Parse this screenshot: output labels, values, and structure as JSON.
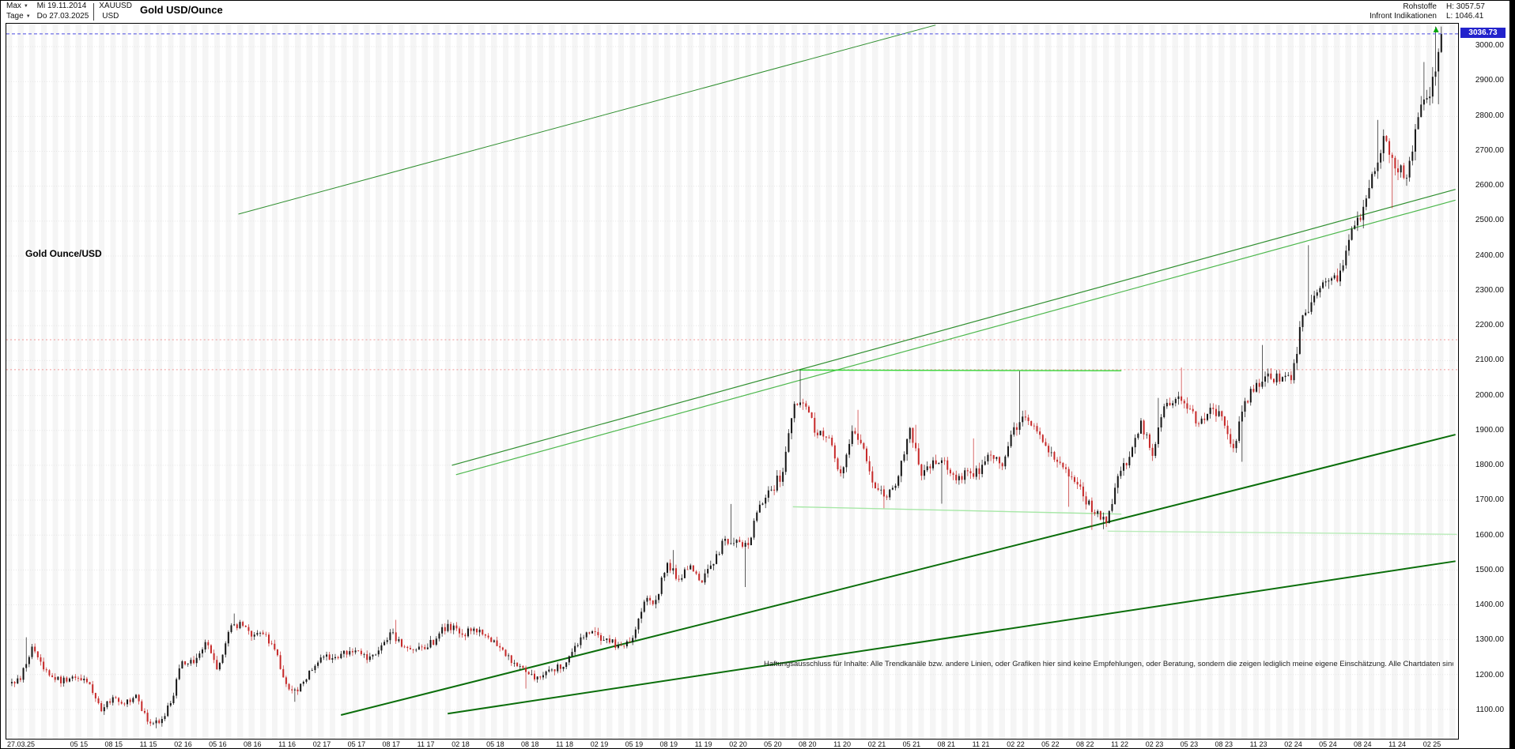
{
  "header": {
    "range_label": "Max",
    "period_label": "Tage",
    "start_date": "Mi 19.11.2014",
    "end_date": "Do 27.03.2025",
    "symbol": "XAUUSD",
    "currency": "USD",
    "title": "Gold USD/Ounce",
    "category": "Rohstoffe",
    "source": "Infront Indikationen",
    "high_label": "H: 3057.57",
    "low_label": "L: 1046.41"
  },
  "price_badge": "3036.73",
  "annotations": {
    "series_label": "Gold Ounce/USD",
    "disclaimer": "Haftungsausschluss für Inhalte: Alle Trendkanäle bzw. andere Linien, oder Grafiken hier sind keine Empfehlungen, oder Beratung, sondern die zeigen lediglich meine eigene Einschätzung. Alle Chartdaten sind ohne"
  },
  "chart_data": {
    "type": "candlestick",
    "title": "Gold USD/Ounce",
    "last_price": 3036.73,
    "period_high": 3057.57,
    "period_low": 1046.41,
    "ylim": [
      1046,
      3058
    ],
    "x_range_years": [
      2014.88,
      2025.32
    ],
    "grid": true,
    "legend": false,
    "y_ticks": [
      3000,
      2900,
      2800,
      2700,
      2600,
      2500,
      2400,
      2300,
      2200,
      2100,
      2000,
      1900,
      1800,
      1700,
      1600,
      1500,
      1400,
      1300,
      1200,
      1100
    ],
    "x_first_label": "27.03.25",
    "x_ticks": [
      "05 15",
      "08 15",
      "11 15",
      "02 16",
      "05 16",
      "08 16",
      "11 16",
      "02 17",
      "05 17",
      "08 17",
      "11 17",
      "02 18",
      "05 18",
      "08 18",
      "11 18",
      "02 19",
      "05 19",
      "08 19",
      "11 19",
      "02 20",
      "05 20",
      "08 20",
      "11 20",
      "02 21",
      "05 21",
      "08 21",
      "11 21",
      "02 22",
      "05 22",
      "08 22",
      "11 22",
      "02 23",
      "05 23",
      "08 23",
      "11 23",
      "02 24",
      "05 24",
      "08 24",
      "11 24",
      "02 25"
    ],
    "colors": {
      "candle_up": "#141414",
      "candle_down": "#c62828",
      "grid": "#e5e5e5",
      "badge_bg": "#2323cc",
      "price_line": "#4a4ae0",
      "level_line": "#f09898",
      "marker": "#00a50a"
    },
    "points": [
      [
        "2014-11",
        1175
      ],
      [
        "2014-12",
        1185
      ],
      [
        "2015-01",
        1280,
        1307
      ],
      [
        "2015-02",
        1215
      ],
      [
        "2015-03",
        1185
      ],
      [
        "2015-04",
        1180
      ],
      [
        "2015-05",
        1190
      ],
      [
        "2015-06",
        1172
      ],
      [
        "2015-07",
        1095
      ],
      [
        "2015-08",
        1135
      ],
      [
        "2015-09",
        1115
      ],
      [
        "2015-10",
        1142
      ],
      [
        "2015-11",
        1065
      ],
      [
        "2015-12",
        1061,
        null,
        1046
      ],
      [
        "2016-01",
        1118
      ],
      [
        "2016-02",
        1238
      ],
      [
        "2016-03",
        1233
      ],
      [
        "2016-04",
        1293
      ],
      [
        "2016-05",
        1215
      ],
      [
        "2016-06",
        1322
      ],
      [
        "2016-07",
        1351,
        1375
      ],
      [
        "2016-08",
        1309
      ],
      [
        "2016-09",
        1316
      ],
      [
        "2016-10",
        1272
      ],
      [
        "2016-11",
        1173
      ],
      [
        "2016-12",
        1152,
        null,
        1122
      ],
      [
        "2017-01",
        1211
      ],
      [
        "2017-02",
        1249
      ],
      [
        "2017-03",
        1247
      ],
      [
        "2017-04",
        1268
      ],
      [
        "2017-05",
        1269
      ],
      [
        "2017-06",
        1242
      ],
      [
        "2017-07",
        1269
      ],
      [
        "2017-08",
        1321
      ],
      [
        "2017-09",
        1280,
        1357
      ],
      [
        "2017-10",
        1271
      ],
      [
        "2017-11",
        1273
      ],
      [
        "2017-12",
        1303
      ],
      [
        "2018-01",
        1345
      ],
      [
        "2018-02",
        1318
      ],
      [
        "2018-03",
        1325
      ],
      [
        "2018-04",
        1315
      ],
      [
        "2018-05",
        1298
      ],
      [
        "2018-06",
        1253
      ],
      [
        "2018-07",
        1224
      ],
      [
        "2018-08",
        1201,
        null,
        1160
      ],
      [
        "2018-09",
        1192
      ],
      [
        "2018-10",
        1215
      ],
      [
        "2018-11",
        1222
      ],
      [
        "2018-12",
        1282
      ],
      [
        "2019-01",
        1321
      ],
      [
        "2019-02",
        1313
      ],
      [
        "2019-03",
        1292
      ],
      [
        "2019-04",
        1283
      ],
      [
        "2019-05",
        1305
      ],
      [
        "2019-06",
        1409
      ],
      [
        "2019-07",
        1414
      ],
      [
        "2019-08",
        1520
      ],
      [
        "2019-09",
        1472,
        1557
      ],
      [
        "2019-10",
        1513
      ],
      [
        "2019-11",
        1464
      ],
      [
        "2019-12",
        1517
      ],
      [
        "2020-01",
        1589
      ],
      [
        "2020-02",
        1586,
        1689
      ],
      [
        "2020-03",
        1571,
        null,
        1451
      ],
      [
        "2020-04",
        1687
      ],
      [
        "2020-05",
        1730
      ],
      [
        "2020-06",
        1781
      ],
      [
        "2020-07",
        1976
      ],
      [
        "2020-08",
        1968,
        2075
      ],
      [
        "2020-09",
        1886
      ],
      [
        "2020-10",
        1879
      ],
      [
        "2020-11",
        1777
      ],
      [
        "2020-12",
        1898
      ],
      [
        "2021-01",
        1848,
        1959
      ],
      [
        "2021-02",
        1734
      ],
      [
        "2021-03",
        1708,
        null,
        1677
      ],
      [
        "2021-04",
        1769
      ],
      [
        "2021-05",
        1907
      ],
      [
        "2021-06",
        1770,
        1916
      ],
      [
        "2021-07",
        1814
      ],
      [
        "2021-08",
        1814,
        null,
        1690
      ],
      [
        "2021-09",
        1757
      ],
      [
        "2021-10",
        1783
      ],
      [
        "2021-11",
        1775,
        1877
      ],
      [
        "2021-12",
        1829
      ],
      [
        "2022-01",
        1797
      ],
      [
        "2022-02",
        1909
      ],
      [
        "2022-03",
        1937,
        2070
      ],
      [
        "2022-04",
        1897
      ],
      [
        "2022-05",
        1837
      ],
      [
        "2022-06",
        1807
      ],
      [
        "2022-07",
        1766,
        null,
        1681
      ],
      [
        "2022-08",
        1711
      ],
      [
        "2022-09",
        1661,
        null,
        1615
      ],
      [
        "2022-10",
        1634,
        null,
        1617
      ],
      [
        "2022-11",
        1769
      ],
      [
        "2022-12",
        1824
      ],
      [
        "2023-01",
        1928
      ],
      [
        "2023-02",
        1827
      ],
      [
        "2023-03",
        1969,
        1993
      ],
      [
        "2023-04",
        1990
      ],
      [
        "2023-05",
        1962,
        2080
      ],
      [
        "2023-06",
        1919
      ],
      [
        "2023-07",
        1965
      ],
      [
        "2023-08",
        1940
      ],
      [
        "2023-09",
        1849
      ],
      [
        "2023-10",
        1984,
        null,
        1810
      ],
      [
        "2023-11",
        2036
      ],
      [
        "2023-12",
        2063,
        2145
      ],
      [
        "2024-01",
        2040
      ],
      [
        "2024-02",
        2044
      ],
      [
        "2024-03",
        2230
      ],
      [
        "2024-04",
        2286,
        2431
      ],
      [
        "2024-05",
        2327
      ],
      [
        "2024-06",
        2327
      ],
      [
        "2024-07",
        2446
      ],
      [
        "2024-08",
        2503
      ],
      [
        "2024-09",
        2635
      ],
      [
        "2024-10",
        2744,
        2790
      ],
      [
        "2024-11",
        2651,
        null,
        2537
      ],
      [
        "2024-12",
        2625
      ],
      [
        "2025-01",
        2798
      ],
      [
        "2025-02",
        2857,
        2956
      ],
      [
        "2025-03",
        3036.73,
        3057.57,
        2835
      ]
    ],
    "trendlines": [
      {
        "t1": 2016.52,
        "p1": 2520,
        "t2": 2021.55,
        "p2": 3062,
        "color": "#2f8f2f",
        "w": 1
      },
      {
        "t1": 2018.06,
        "p1": 1800,
        "t2": 2025.3,
        "p2": 2591,
        "color": "#2f8f2f",
        "w": 1.2
      },
      {
        "t1": 2018.09,
        "p1": 1773,
        "t2": 2025.3,
        "p2": 2560,
        "color": "#4db84d",
        "w": 1.2
      },
      {
        "t1": 2017.26,
        "p1": 1084,
        "t2": 2025.3,
        "p2": 1888,
        "color": "#0a6e0a",
        "w": 2
      },
      {
        "t1": 2018.03,
        "p1": 1088,
        "t2": 2025.3,
        "p2": 1525,
        "color": "#0a6e0a",
        "w": 2
      },
      {
        "t1": 2020.56,
        "p1": 2073,
        "t2": 2022.89,
        "p2": 2071,
        "color": "#35d435",
        "w": 1.4
      },
      {
        "t1": 2020.52,
        "p1": 1681,
        "t2": 2022.89,
        "p2": 1660,
        "color": "#a6e7a6",
        "w": 1.4
      },
      {
        "t1": 2022.79,
        "p1": 1611,
        "t2": 2025.31,
        "p2": 1602,
        "color": "#b9ecb9",
        "w": 1.4
      }
    ],
    "level_lines": [
      {
        "p": 2160
      },
      {
        "p": 2074
      }
    ],
    "current_price_line": {
      "p": 3036.73
    },
    "marker": {
      "t": 2025.16,
      "p": 3048
    }
  }
}
